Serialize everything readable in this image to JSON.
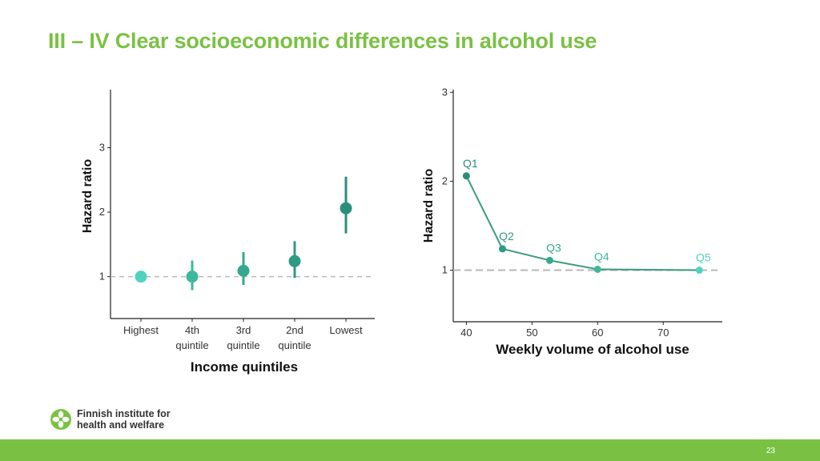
{
  "slide": {
    "title": "III – IV Clear socioeconomic differences in alcohol use",
    "page_number": "23",
    "logo": {
      "line1": "Finnish institute for",
      "line2": "health and welfare",
      "icon": "flower-logo-icon"
    }
  },
  "colors": {
    "title": "#7ac143",
    "footer": "#7ac143",
    "reference_line": "#bbbbbb",
    "q1": "#2a8f7a",
    "q2": "#2f9a84",
    "q3": "#35a98f",
    "q4": "#3db89b",
    "q5": "#4fd3be",
    "line": "#3a9a80"
  },
  "chart_data": [
    {
      "type": "scatter",
      "subtype": "point-with-error-bars",
      "xlabel": "Income quintiles",
      "ylabel": "Hazard ratio",
      "categories": [
        "Highest",
        "4th quintile",
        "3rd quintile",
        "2nd quintile",
        "Lowest"
      ],
      "category_labels": [
        [
          "Highest"
        ],
        [
          "4th",
          "quintile"
        ],
        [
          "3rd",
          "quintile"
        ],
        [
          "2nd",
          "quintile"
        ],
        [
          "Lowest"
        ]
      ],
      "values": [
        1.0,
        1.0,
        1.09,
        1.24,
        2.06
      ],
      "lower": [
        1.0,
        0.79,
        0.87,
        0.98,
        1.67
      ],
      "upper": [
        1.0,
        1.25,
        1.38,
        1.55,
        2.55
      ],
      "ylim": [
        0.35,
        3.9
      ],
      "yticks": [
        1,
        2,
        3
      ],
      "reference_line": 1,
      "grid": false
    },
    {
      "type": "line",
      "xlabel": "Weekly volume of alcohol use",
      "ylabel": "Hazard ratio",
      "points": [
        {
          "label": "Q1",
          "x": 40,
          "y": 2.06
        },
        {
          "label": "Q2",
          "x": 45.5,
          "y": 1.24
        },
        {
          "label": "Q3",
          "x": 52.7,
          "y": 1.11
        },
        {
          "label": "Q4",
          "x": 60,
          "y": 1.01
        },
        {
          "label": "Q5",
          "x": 75.5,
          "y": 1.0
        }
      ],
      "xlim": [
        38,
        79
      ],
      "ylim": [
        0.42,
        3.03
      ],
      "xticks": [
        40,
        50,
        60,
        70
      ],
      "yticks": [
        1,
        2,
        3
      ],
      "reference_line": 1,
      "grid": false
    }
  ]
}
